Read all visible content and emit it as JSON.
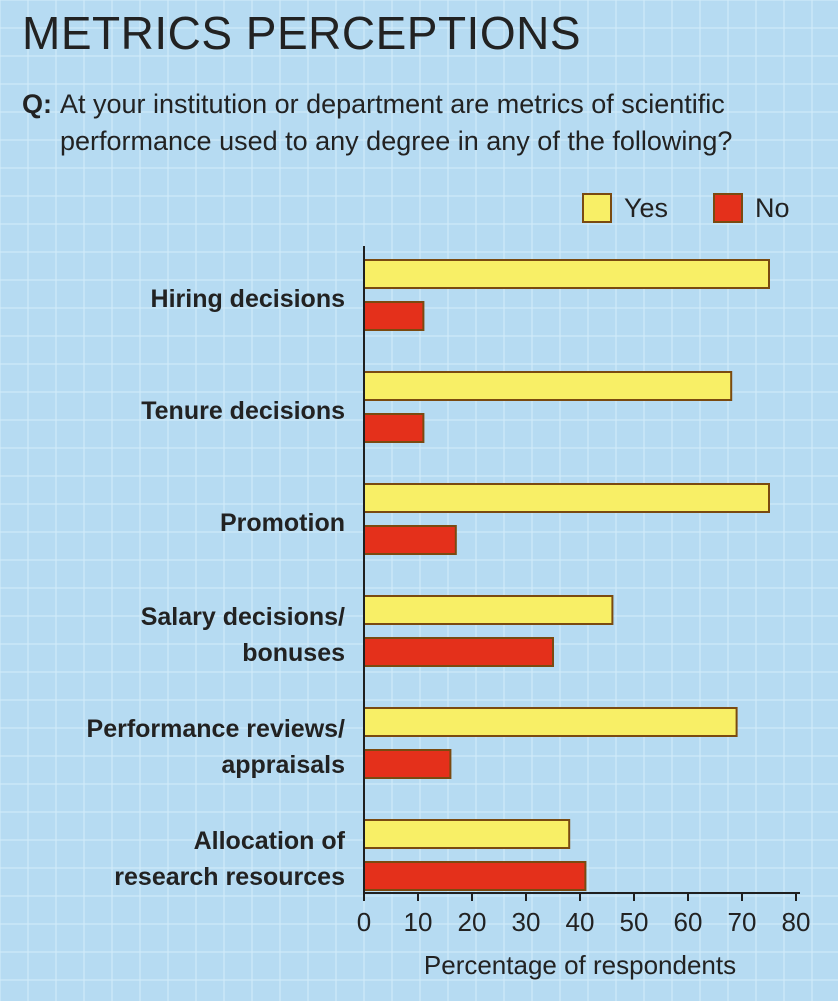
{
  "header": {
    "title": "METRICS PERCEPTIONS",
    "q_prefix": "Q:",
    "question": "At your institution or department are metrics of scientific performance used to any degree in any of the following?"
  },
  "colors": {
    "background": "#b6dbf2",
    "grid": "#d4ecfa",
    "yes": "#f8ef66",
    "no": "#e4301b",
    "bar_outline": "#7a4a10",
    "axis": "#1f1f1f"
  },
  "chart_data": {
    "type": "bar",
    "orientation": "horizontal",
    "categories": [
      [
        "Hiring decisions"
      ],
      [
        "Tenure decisions"
      ],
      [
        "Promotion"
      ],
      [
        "Salary decisions/",
        "bonuses"
      ],
      [
        "Performance reviews/",
        "appraisals"
      ],
      [
        "Allocation of",
        "research resources"
      ]
    ],
    "series": [
      {
        "name": "Yes",
        "values": [
          75,
          68,
          75,
          46,
          69,
          38
        ]
      },
      {
        "name": "No",
        "values": [
          11,
          11,
          17,
          35,
          16,
          41
        ]
      }
    ],
    "xlabel": "Percentage of respondents",
    "xlim": [
      0,
      80
    ],
    "xticks": [
      0,
      10,
      20,
      30,
      40,
      50,
      60,
      70,
      80
    ],
    "legend_position": "top-right"
  }
}
